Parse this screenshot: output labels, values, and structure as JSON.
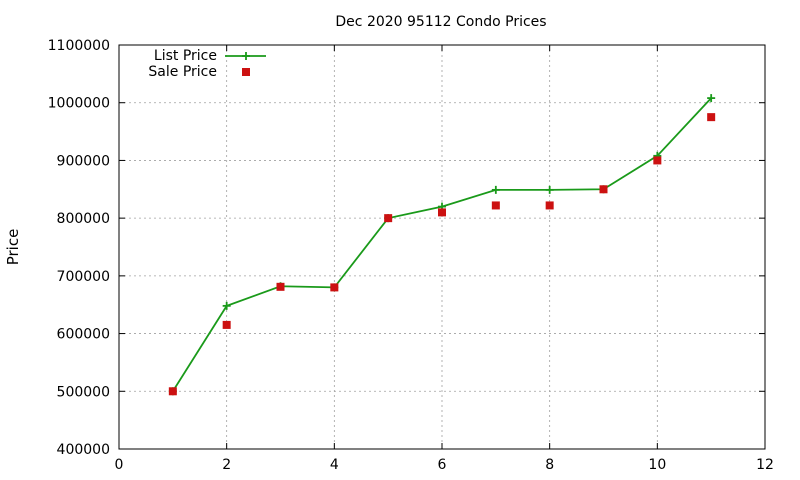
{
  "chart_data": {
    "type": "line",
    "title": "Dec 2020 95112 Condo Prices",
    "xlabel": "",
    "ylabel": "Price",
    "xlim": [
      0,
      12
    ],
    "ylim": [
      400000,
      1100000
    ],
    "xticks": [
      "0",
      "2",
      "4",
      "6",
      "8",
      "10",
      "12"
    ],
    "yticks": [
      "400000",
      "500000",
      "600000",
      "700000",
      "800000",
      "900000",
      "1000000",
      "1100000"
    ],
    "grid": true,
    "legend_position": "top-left",
    "series": [
      {
        "name": "List Price",
        "style": "line+plus",
        "color": "#1a9a1a",
        "x": [
          1,
          2,
          3,
          4,
          5,
          6,
          7,
          8,
          9,
          10,
          11
        ],
        "values": [
          500000,
          648000,
          682000,
          680000,
          800000,
          820000,
          849000,
          849000,
          850000,
          908000,
          1008000
        ]
      },
      {
        "name": "Sale Price",
        "style": "square",
        "color": "#cc1111",
        "x": [
          1,
          2,
          3,
          4,
          5,
          6,
          7,
          8,
          9,
          10,
          11
        ],
        "values": [
          500000,
          615000,
          681000,
          680000,
          800000,
          810000,
          822000,
          822000,
          850000,
          900000,
          975000
        ]
      }
    ]
  }
}
